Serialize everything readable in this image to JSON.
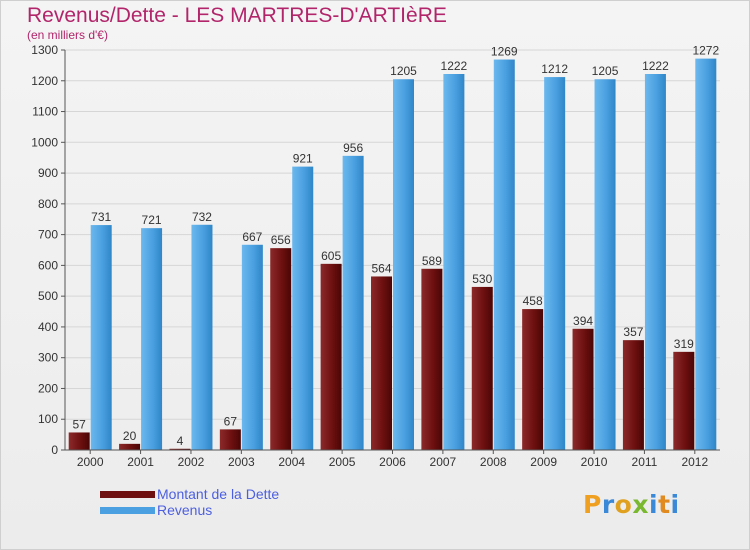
{
  "chart_data": {
    "type": "bar",
    "title": "Revenus/Dette - LES MARTRES-D'ARTIèRE",
    "subtitle": "(en milliers d'€)",
    "categories": [
      "2000",
      "2001",
      "2002",
      "2003",
      "2004",
      "2005",
      "2006",
      "2007",
      "2008",
      "2009",
      "2010",
      "2011",
      "2012"
    ],
    "series": [
      {
        "name": "Montant de la Dette",
        "color": "#7a1414",
        "values": [
          57,
          20,
          4,
          67,
          656,
          605,
          564,
          589,
          530,
          458,
          394,
          357,
          319
        ]
      },
      {
        "name": "Revenus",
        "color": "#4aa0e0",
        "values": [
          731,
          721,
          732,
          667,
          921,
          956,
          1205,
          1222,
          1269,
          1212,
          1205,
          1222,
          1272
        ]
      }
    ],
    "ylim": [
      0,
      1300
    ],
    "yticks": [
      0,
      100,
      200,
      300,
      400,
      500,
      600,
      700,
      800,
      900,
      1000,
      1100,
      1200,
      1300
    ],
    "grid": true,
    "legend_position": "bottom-left"
  },
  "logo": {
    "letters": [
      "P",
      "r",
      "o",
      "x",
      "i",
      "t",
      "i"
    ],
    "colors": [
      "#f0a020",
      "#3a88d8",
      "#e0a020",
      "#7ab830",
      "#3a88d8",
      "#e08a20",
      "#3a88d8"
    ]
  }
}
